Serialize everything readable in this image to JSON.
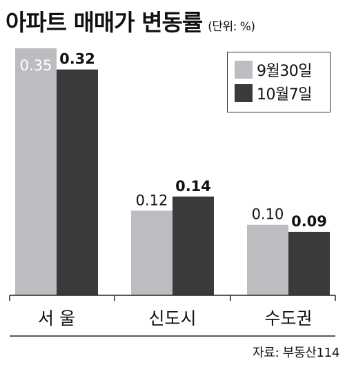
{
  "header": {
    "title": "아파트 매매가 변동률",
    "unit": "(단위: %)"
  },
  "legend": {
    "items": [
      {
        "label": "9월30일",
        "color": "#bcbdc0"
      },
      {
        "label": "10월7일",
        "color": "#3a3a3c"
      }
    ]
  },
  "source": "자료: 부동산114",
  "chart_data": {
    "type": "bar",
    "categories": [
      "서 울",
      "신도시",
      "수도권"
    ],
    "series": [
      {
        "name": "9월30일",
        "values": [
          0.35,
          0.12,
          0.1
        ],
        "labels": [
          "0.35",
          "0.12",
          "0.10"
        ],
        "color": "#bcbdc0"
      },
      {
        "name": "10월7일",
        "values": [
          0.32,
          0.14,
          0.09
        ],
        "labels": [
          "0.32",
          "0.14",
          "0.09"
        ],
        "color": "#3a3a3c"
      }
    ],
    "title": "아파트 매매가 변동률",
    "ylabel": "",
    "ylim": [
      0,
      0.35
    ],
    "grid": false,
    "legend_position": "top-right"
  }
}
